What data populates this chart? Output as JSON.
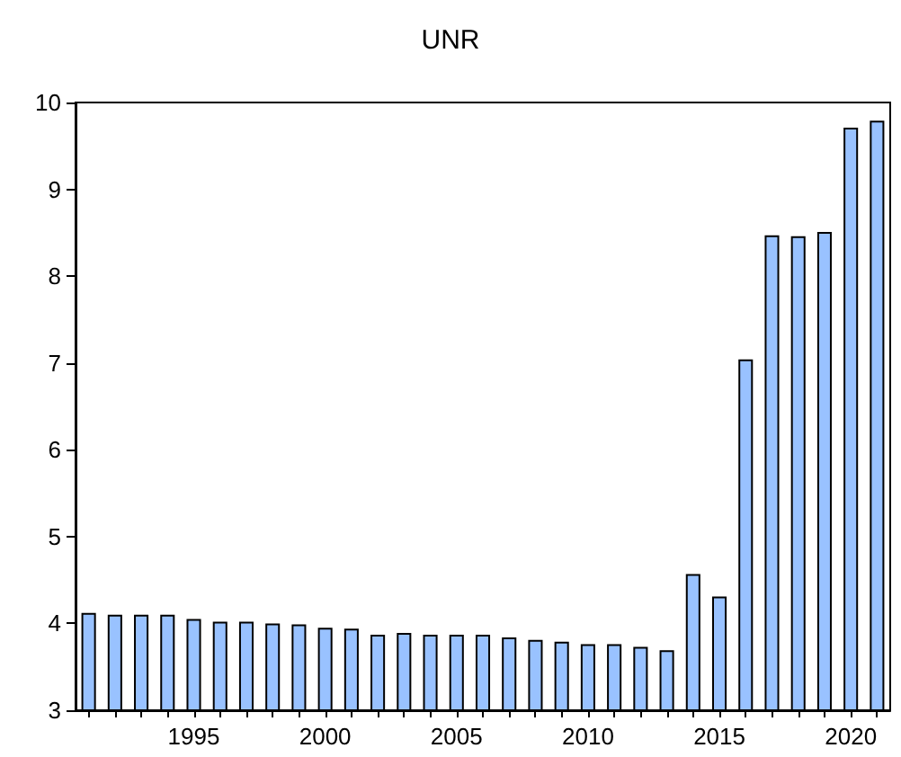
{
  "chart_data": {
    "type": "bar",
    "title": "UNR",
    "categories": [
      null,
      null,
      null,
      null,
      "1995",
      null,
      null,
      null,
      null,
      "2000",
      null,
      null,
      null,
      null,
      "2005",
      null,
      null,
      null,
      null,
      "2010",
      null,
      null,
      null,
      null,
      "2015",
      null,
      null,
      null,
      null,
      "2020",
      null
    ],
    "values": [
      4.12,
      4.1,
      4.1,
      4.1,
      4.05,
      4.02,
      4.02,
      4.0,
      3.99,
      3.95,
      3.94,
      3.87,
      3.89,
      3.87,
      3.87,
      3.87,
      3.84,
      3.81,
      3.79,
      3.76,
      3.76,
      3.73,
      3.69,
      4.57,
      4.31,
      7.04,
      8.47,
      8.46,
      8.51,
      9.71,
      9.79
    ],
    "color": "#99c2ff",
    "ylim": [
      3,
      10
    ],
    "yticks": [
      3,
      4,
      5,
      6,
      7,
      8,
      9,
      10
    ],
    "grid": false
  }
}
